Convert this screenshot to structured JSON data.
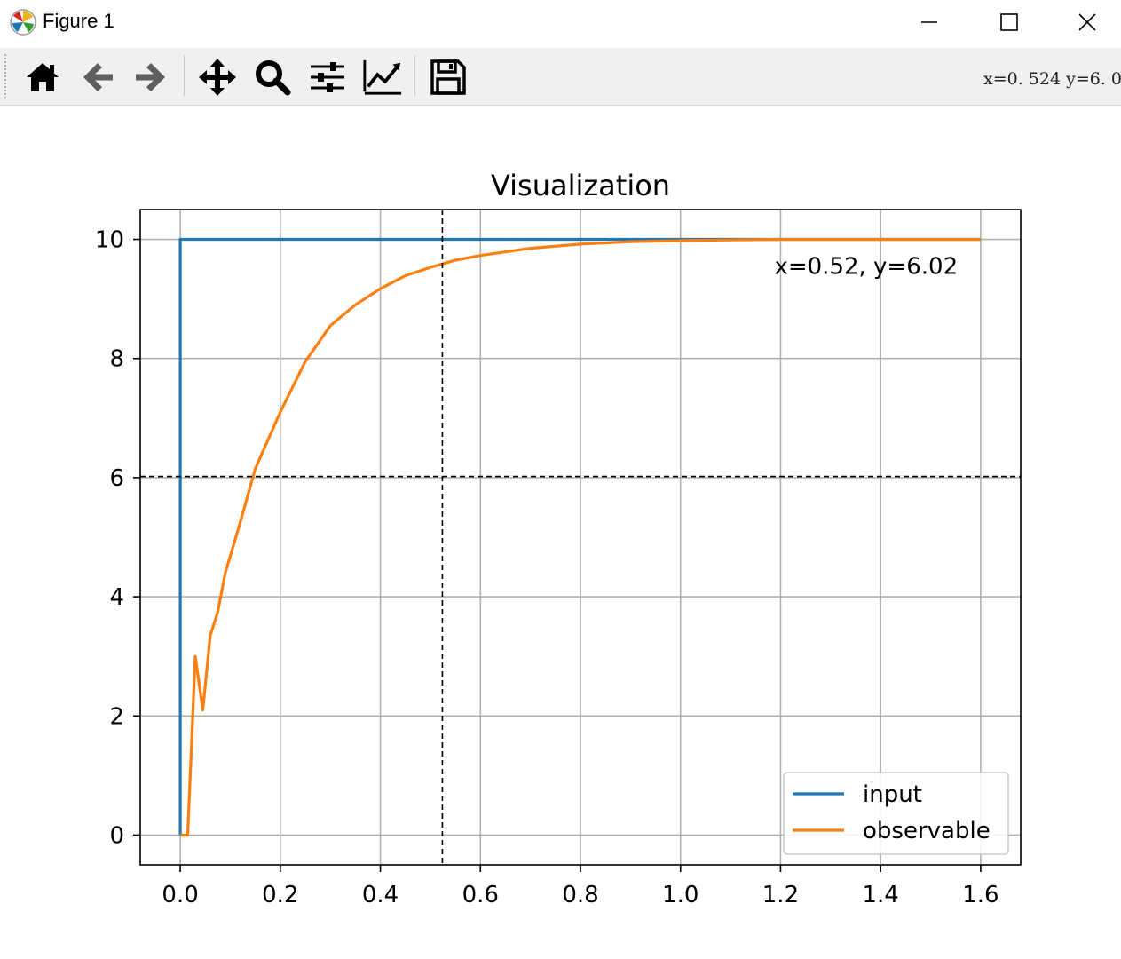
{
  "window": {
    "title": "Figure 1"
  },
  "toolbar": {
    "tools": [
      {
        "name": "home-icon",
        "tooltip": "Home"
      },
      {
        "name": "back-icon",
        "tooltip": "Back"
      },
      {
        "name": "forward-icon",
        "tooltip": "Forward"
      },
      {
        "name": "pan-icon",
        "tooltip": "Pan"
      },
      {
        "name": "zoom-icon",
        "tooltip": "Zoom"
      },
      {
        "name": "subplots-icon",
        "tooltip": "Subplots"
      },
      {
        "name": "customize-icon",
        "tooltip": "Customize"
      },
      {
        "name": "save-icon",
        "tooltip": "Save"
      }
    ],
    "coords_text": "x=0. 524  y=6. 0"
  },
  "chart_data": {
    "type": "line",
    "title": "Visualization",
    "xlabel": "",
    "ylabel": "",
    "xlim": [
      -0.08,
      1.68
    ],
    "ylim": [
      -0.5,
      10.5
    ],
    "xticks": [
      "0.0",
      "0.2",
      "0.4",
      "0.6",
      "0.8",
      "1.0",
      "1.2",
      "1.4",
      "1.6"
    ],
    "yticks": [
      "0",
      "2",
      "4",
      "6",
      "8",
      "10"
    ],
    "grid": true,
    "legend": {
      "position": "lower-right"
    },
    "series": [
      {
        "name": "input",
        "color": "#1f77b4",
        "x": [
          0,
          0,
          1.6
        ],
        "y": [
          0,
          10,
          10
        ]
      },
      {
        "name": "observable",
        "color": "#ff7f0e",
        "x": [
          0,
          0.015,
          0.03,
          0.045,
          0.06,
          0.075,
          0.09,
          0.12,
          0.15,
          0.2,
          0.25,
          0.3,
          0.35,
          0.4,
          0.45,
          0.5,
          0.55,
          0.6,
          0.7,
          0.8,
          0.9,
          1.0,
          1.1,
          1.2,
          1.3,
          1.4,
          1.5,
          1.6
        ],
        "y": [
          0,
          0,
          3.0,
          2.1,
          3.35,
          3.75,
          4.4,
          5.25,
          6.15,
          7.1,
          7.95,
          8.55,
          8.9,
          9.17,
          9.39,
          9.53,
          9.65,
          9.73,
          9.85,
          9.92,
          9.96,
          9.98,
          9.99,
          10.0,
          10.0,
          10.0,
          10.0,
          10.0
        ]
      }
    ],
    "crosshair": {
      "x": 0.524,
      "y": 6.02
    },
    "annotation": {
      "text": "x=0.52, y=6.02",
      "x": 1.2,
      "y": 9.55
    }
  }
}
